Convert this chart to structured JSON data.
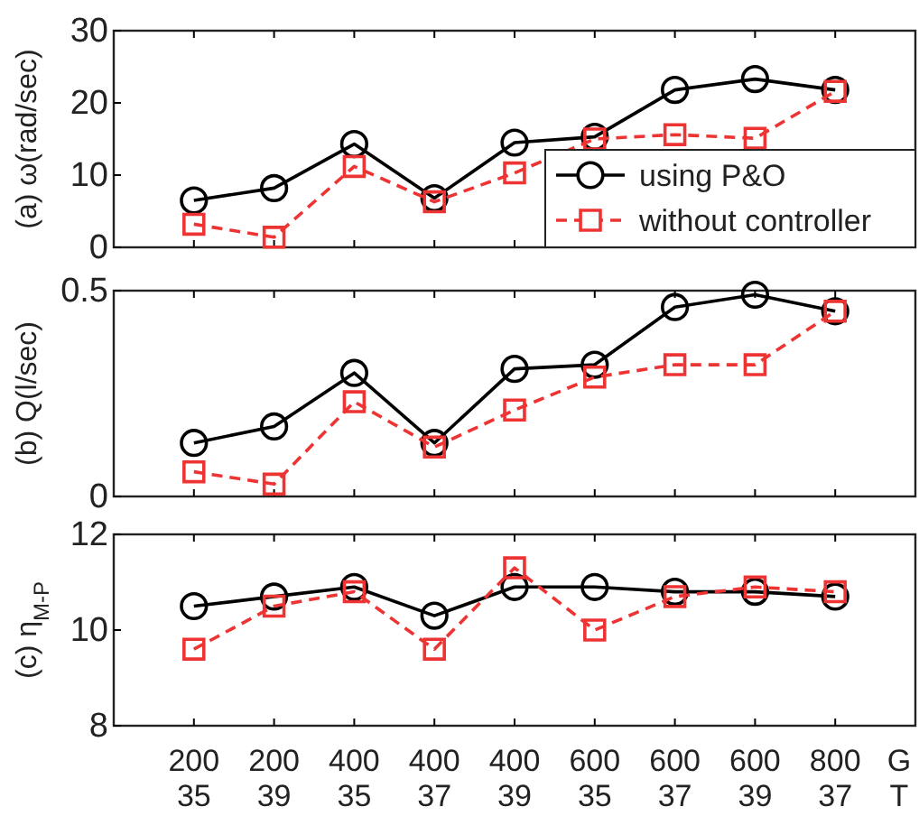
{
  "chart_data": [
    {
      "type": "line",
      "ylabel": "(a) ω(rad/sec)",
      "categories": [
        null,
        null,
        null,
        null,
        null,
        null,
        null,
        null,
        null
      ],
      "ylim": [
        0,
        30
      ],
      "yticks": [
        0,
        10,
        20,
        30
      ],
      "tick_labels": "y",
      "legend": "bottom right",
      "grid": false,
      "series": [
        {
          "name": "using P&O",
          "color": "#000000",
          "marker": "circle",
          "line_style": "solid",
          "values": [
            6.5,
            8.2,
            14.3,
            6.8,
            14.5,
            15.3,
            21.8,
            23.3,
            21.8
          ]
        },
        {
          "name": "without controller",
          "color": "#ee3333",
          "marker": "square",
          "line_style": "dashed",
          "values": [
            3.2,
            1.4,
            11.2,
            6.3,
            10.3,
            15.0,
            15.6,
            15.1,
            21.6
          ]
        }
      ]
    },
    {
      "type": "line",
      "ylabel": "(b) Q(l/sec)",
      "categories": [
        null,
        null,
        null,
        null,
        null,
        null,
        null,
        null,
        null
      ],
      "ylim": [
        0,
        0.5
      ],
      "yticks": [
        0,
        0.5
      ],
      "tick_labels": "y",
      "grid": false,
      "series": [
        {
          "color": "#000000",
          "marker": "circle",
          "line_style": "solid",
          "values": [
            0.13,
            0.17,
            0.3,
            0.13,
            0.31,
            0.32,
            0.46,
            0.49,
            0.45
          ]
        },
        {
          "color": "#ee3333",
          "marker": "square",
          "line_style": "dashed",
          "values": [
            0.06,
            0.03,
            0.23,
            0.12,
            0.21,
            0.29,
            0.32,
            0.32,
            0.45
          ]
        }
      ]
    },
    {
      "type": "line",
      "ylabel": "(c) η$_{M-P}$",
      "xlabel": "G\nT",
      "categories": [
        "200\n35",
        "200\n39",
        "400\n35",
        "400\n37",
        "400\n39",
        "600\n35",
        "600\n37",
        "600\n39",
        "800\n37"
      ],
      "ylim": [
        8,
        12
      ],
      "yticks": [
        8,
        10,
        12
      ],
      "grid": false,
      "series": [
        {
          "color": "#000000",
          "marker": "circle",
          "line_style": "solid",
          "values": [
            10.5,
            10.7,
            10.9,
            10.3,
            10.9,
            10.9,
            10.8,
            10.8,
            10.7
          ]
        },
        {
          "color": "#ee3333",
          "marker": "square",
          "line_style": "dashed",
          "values": [
            9.6,
            10.5,
            10.8,
            9.6,
            11.3,
            10.0,
            10.7,
            10.9,
            10.8
          ]
        }
      ]
    }
  ]
}
